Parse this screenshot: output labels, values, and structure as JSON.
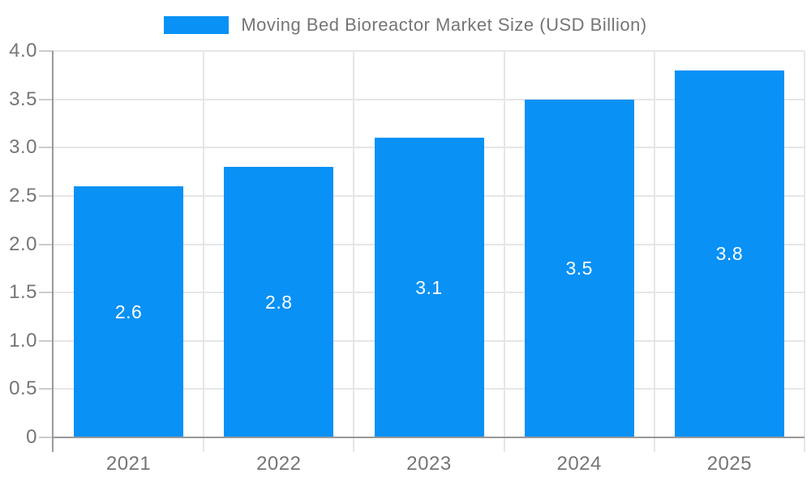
{
  "legend": {
    "label": "Moving Bed Bioreactor Market Size (USD Billion)"
  },
  "chart_data": {
    "type": "bar",
    "title": "Moving Bed Bioreactor Market Size (USD Billion)",
    "categories": [
      "2021",
      "2022",
      "2023",
      "2024",
      "2025"
    ],
    "values": [
      2.6,
      2.8,
      3.1,
      3.5,
      3.8
    ],
    "data_labels": [
      "2.6",
      "2.8",
      "3.1",
      "3.5",
      "3.8"
    ],
    "series_name": "Moving Bed Bioreactor Market Size (USD Billion)",
    "xlabel": "",
    "ylabel": "",
    "ylim": [
      0,
      4.0
    ],
    "ytick_step": 0.5,
    "ytick_labels": [
      "0",
      "0.5",
      "1.0",
      "1.5",
      "2.0",
      "2.5",
      "3.0",
      "3.5",
      "4.0"
    ],
    "grid": true,
    "legend_position": "top-center"
  },
  "colors": {
    "bar": "#0991f5",
    "gridline": "#e6e6e6",
    "axis": "#999999",
    "tick": "#cccccc",
    "label_text": "#757575",
    "bar_label_text": "#ffffff",
    "background": "#ffffff"
  }
}
